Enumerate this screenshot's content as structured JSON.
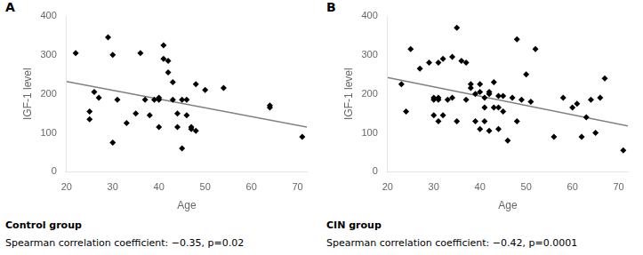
{
  "chart_data": [
    {
      "type": "scatter",
      "annotations": [
        "A"
      ],
      "title": "Control group",
      "subtitle": "Spearman correlation coefficient: −0.35, p=0.02",
      "xlabel": "Age",
      "ylabel": "IGF-1 level",
      "xlim": [
        20,
        72
      ],
      "ylim": [
        0,
        400
      ],
      "xticks": [
        20,
        30,
        40,
        50,
        60,
        70
      ],
      "yticks": [
        0,
        100,
        200,
        300,
        400
      ],
      "grid": false,
      "series": [
        {
          "type": "scatter",
          "color": "#000000",
          "marker": "diamond",
          "x": [
            22,
            25,
            25,
            26,
            27,
            29,
            30,
            30,
            31,
            33,
            35,
            36,
            37,
            38,
            39,
            40,
            40,
            40,
            41,
            41,
            42,
            42,
            43,
            43,
            44,
            44,
            45,
            45,
            46,
            46,
            47,
            47,
            48,
            48,
            50,
            54,
            64,
            64,
            71
          ],
          "values": [
            305,
            155,
            135,
            205,
            190,
            345,
            300,
            75,
            185,
            125,
            150,
            305,
            185,
            145,
            185,
            190,
            185,
            115,
            325,
            290,
            285,
            255,
            230,
            185,
            150,
            115,
            185,
            60,
            185,
            145,
            115,
            110,
            225,
            105,
            210,
            215,
            170,
            165,
            90
          ]
        },
        {
          "type": "line",
          "color": "#808080",
          "x": [
            20,
            72
          ],
          "values": [
            232,
            115
          ]
        }
      ]
    },
    {
      "type": "scatter",
      "annotations": [
        "B"
      ],
      "title": "CIN group",
      "subtitle": "Spearman correlation coefficient: −0.42, p=0.0001",
      "xlabel": "Age",
      "ylabel": "IGF-1 level",
      "xlim": [
        20,
        72
      ],
      "ylim": [
        0,
        400
      ],
      "xticks": [
        20,
        30,
        40,
        50,
        60,
        70
      ],
      "yticks": [
        0,
        100,
        200,
        300,
        400
      ],
      "grid": false,
      "series": [
        {
          "type": "scatter",
          "color": "#000000",
          "marker": "diamond",
          "x": [
            23,
            24,
            25,
            27,
            29,
            30,
            30,
            30,
            31,
            31,
            31,
            31,
            32,
            32,
            33,
            34,
            34,
            35,
            35,
            36,
            37,
            37,
            38,
            38,
            39,
            39,
            40,
            40,
            40,
            41,
            41,
            41,
            42,
            42,
            42,
            43,
            43,
            44,
            44,
            44,
            45,
            45,
            46,
            47,
            48,
            48,
            49,
            50,
            51,
            52,
            56,
            58,
            60,
            61,
            62,
            63,
            64,
            65,
            66,
            67,
            71
          ],
          "values": [
            225,
            155,
            315,
            265,
            280,
            190,
            185,
            145,
            280,
            190,
            185,
            130,
            290,
            145,
            185,
            295,
            190,
            370,
            130,
            285,
            280,
            185,
            225,
            215,
            200,
            130,
            225,
            205,
            110,
            190,
            165,
            130,
            205,
            200,
            105,
            230,
            165,
            195,
            165,
            110,
            195,
            155,
            80,
            190,
            340,
            130,
            185,
            250,
            180,
            315,
            90,
            190,
            165,
            175,
            90,
            140,
            185,
            100,
            190,
            240,
            55
          ]
        },
        {
          "type": "line",
          "color": "#808080",
          "x": [
            20,
            72
          ],
          "values": [
            242,
            118
          ]
        }
      ]
    }
  ]
}
